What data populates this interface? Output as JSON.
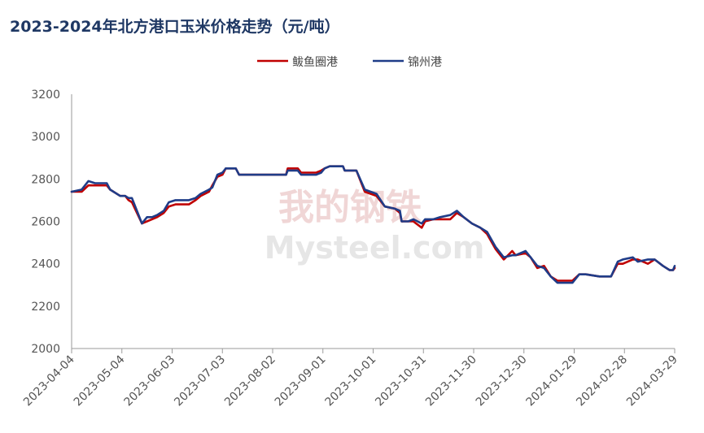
{
  "chart_data": {
    "type": "line",
    "title": "2023-2024年北方港口玉米价格走势（元/吨）",
    "xlabel": "",
    "ylabel": "",
    "ylim": [
      2000,
      3200
    ],
    "yticks": [
      2000,
      2200,
      2400,
      2600,
      2800,
      3000,
      3200
    ],
    "xlim": [
      "2023-04-04",
      "2024-03-29"
    ],
    "xticks": [
      "2023-04-04",
      "2023-05-04",
      "2023-06-03",
      "2023-07-03",
      "2023-08-02",
      "2023-09-01",
      "2023-10-01",
      "2023-10-31",
      "2023-11-30",
      "2023-12-30",
      "2024-01-29",
      "2024-02-28",
      "2024-03-29"
    ],
    "grid": false,
    "legend_position": "top-center",
    "watermark": {
      "line1": "我的钢铁",
      "line2": "Mysteel.com"
    },
    "series": [
      {
        "name": "鲅鱼圈港",
        "color": "#c00000",
        "points": [
          [
            "2023-04-04",
            2740
          ],
          [
            "2023-04-10",
            2740
          ],
          [
            "2023-04-14",
            2770
          ],
          [
            "2023-04-18",
            2770
          ],
          [
            "2023-04-25",
            2770
          ],
          [
            "2023-04-27",
            2750
          ],
          [
            "2023-05-03",
            2720
          ],
          [
            "2023-05-06",
            2720
          ],
          [
            "2023-05-08",
            2700
          ],
          [
            "2023-05-10",
            2690
          ],
          [
            "2023-05-16",
            2590
          ],
          [
            "2023-05-19",
            2600
          ],
          [
            "2023-05-22",
            2610
          ],
          [
            "2023-05-25",
            2620
          ],
          [
            "2023-05-29",
            2640
          ],
          [
            "2023-06-01",
            2670
          ],
          [
            "2023-06-05",
            2680
          ],
          [
            "2023-06-13",
            2680
          ],
          [
            "2023-06-17",
            2700
          ],
          [
            "2023-06-20",
            2720
          ],
          [
            "2023-06-25",
            2740
          ],
          [
            "2023-06-27",
            2770
          ],
          [
            "2023-06-30",
            2810
          ],
          [
            "2023-07-03",
            2820
          ],
          [
            "2023-07-05",
            2850
          ],
          [
            "2023-07-11",
            2850
          ],
          [
            "2023-07-13",
            2820
          ],
          [
            "2023-08-01",
            2820
          ],
          [
            "2023-08-10",
            2820
          ],
          [
            "2023-08-11",
            2850
          ],
          [
            "2023-08-17",
            2850
          ],
          [
            "2023-08-19",
            2830
          ],
          [
            "2023-08-28",
            2830
          ],
          [
            "2023-08-31",
            2840
          ],
          [
            "2023-09-02",
            2850
          ],
          [
            "2023-09-05",
            2860
          ],
          [
            "2023-09-13",
            2860
          ],
          [
            "2023-09-14",
            2840
          ],
          [
            "2023-09-21",
            2840
          ],
          [
            "2023-09-26",
            2740
          ],
          [
            "2023-10-03",
            2720
          ],
          [
            "2023-10-08",
            2670
          ],
          [
            "2023-10-14",
            2660
          ],
          [
            "2023-10-17",
            2640
          ],
          [
            "2023-10-18",
            2600
          ],
          [
            "2023-10-22",
            2600
          ],
          [
            "2023-10-25",
            2600
          ],
          [
            "2023-10-30",
            2570
          ],
          [
            "2023-11-01",
            2600
          ],
          [
            "2023-11-06",
            2610
          ],
          [
            "2023-11-10",
            2610
          ],
          [
            "2023-11-16",
            2610
          ],
          [
            "2023-11-20",
            2640
          ],
          [
            "2023-11-24",
            2620
          ],
          [
            "2023-11-29",
            2590
          ],
          [
            "2023-12-04",
            2570
          ],
          [
            "2023-12-08",
            2540
          ],
          [
            "2023-12-13",
            2470
          ],
          [
            "2023-12-18",
            2420
          ],
          [
            "2023-12-23",
            2460
          ],
          [
            "2023-12-25",
            2440
          ],
          [
            "2023-12-31",
            2450
          ],
          [
            "2024-01-03",
            2430
          ],
          [
            "2024-01-07",
            2380
          ],
          [
            "2024-01-11",
            2390
          ],
          [
            "2024-01-15",
            2340
          ],
          [
            "2024-01-19",
            2320
          ],
          [
            "2024-01-23",
            2320
          ],
          [
            "2024-01-28",
            2320
          ],
          [
            "2024-02-01",
            2350
          ],
          [
            "2024-02-05",
            2350
          ],
          [
            "2024-02-13",
            2340
          ],
          [
            "2024-02-20",
            2340
          ],
          [
            "2024-02-24",
            2400
          ],
          [
            "2024-02-27",
            2400
          ],
          [
            "2024-03-04",
            2420
          ],
          [
            "2024-03-07",
            2420
          ],
          [
            "2024-03-13",
            2400
          ],
          [
            "2024-03-17",
            2420
          ],
          [
            "2024-03-22",
            2390
          ],
          [
            "2024-03-26",
            2370
          ],
          [
            "2024-03-28",
            2370
          ],
          [
            "2024-03-29",
            2380
          ]
        ]
      },
      {
        "name": "锦州港",
        "color": "#1f3c88",
        "points": [
          [
            "2023-04-04",
            2740
          ],
          [
            "2023-04-10",
            2750
          ],
          [
            "2023-04-14",
            2790
          ],
          [
            "2023-04-18",
            2780
          ],
          [
            "2023-04-25",
            2780
          ],
          [
            "2023-04-27",
            2750
          ],
          [
            "2023-05-03",
            2720
          ],
          [
            "2023-05-06",
            2720
          ],
          [
            "2023-05-08",
            2710
          ],
          [
            "2023-05-10",
            2710
          ],
          [
            "2023-05-16",
            2590
          ],
          [
            "2023-05-19",
            2620
          ],
          [
            "2023-05-22",
            2620
          ],
          [
            "2023-05-25",
            2630
          ],
          [
            "2023-05-29",
            2650
          ],
          [
            "2023-06-01",
            2690
          ],
          [
            "2023-06-05",
            2700
          ],
          [
            "2023-06-13",
            2700
          ],
          [
            "2023-06-17",
            2710
          ],
          [
            "2023-06-20",
            2730
          ],
          [
            "2023-06-25",
            2750
          ],
          [
            "2023-06-27",
            2760
          ],
          [
            "2023-06-30",
            2820
          ],
          [
            "2023-07-03",
            2830
          ],
          [
            "2023-07-05",
            2850
          ],
          [
            "2023-07-11",
            2850
          ],
          [
            "2023-07-13",
            2820
          ],
          [
            "2023-08-01",
            2820
          ],
          [
            "2023-08-10",
            2820
          ],
          [
            "2023-08-11",
            2840
          ],
          [
            "2023-08-17",
            2840
          ],
          [
            "2023-08-19",
            2820
          ],
          [
            "2023-08-28",
            2820
          ],
          [
            "2023-08-31",
            2830
          ],
          [
            "2023-09-02",
            2850
          ],
          [
            "2023-09-05",
            2860
          ],
          [
            "2023-09-13",
            2860
          ],
          [
            "2023-09-14",
            2840
          ],
          [
            "2023-09-21",
            2840
          ],
          [
            "2023-09-26",
            2750
          ],
          [
            "2023-10-03",
            2730
          ],
          [
            "2023-10-08",
            2670
          ],
          [
            "2023-10-14",
            2660
          ],
          [
            "2023-10-17",
            2650
          ],
          [
            "2023-10-18",
            2600
          ],
          [
            "2023-10-22",
            2600
          ],
          [
            "2023-10-25",
            2610
          ],
          [
            "2023-10-30",
            2590
          ],
          [
            "2023-11-01",
            2610
          ],
          [
            "2023-11-06",
            2610
          ],
          [
            "2023-11-10",
            2620
          ],
          [
            "2023-11-16",
            2630
          ],
          [
            "2023-11-20",
            2650
          ],
          [
            "2023-11-24",
            2620
          ],
          [
            "2023-11-29",
            2590
          ],
          [
            "2023-12-04",
            2570
          ],
          [
            "2023-12-08",
            2550
          ],
          [
            "2023-12-13",
            2480
          ],
          [
            "2023-12-18",
            2430
          ],
          [
            "2023-12-23",
            2440
          ],
          [
            "2023-12-25",
            2440
          ],
          [
            "2023-12-31",
            2460
          ],
          [
            "2024-01-03",
            2430
          ],
          [
            "2024-01-07",
            2390
          ],
          [
            "2024-01-11",
            2380
          ],
          [
            "2024-01-15",
            2340
          ],
          [
            "2024-01-19",
            2310
          ],
          [
            "2024-01-23",
            2310
          ],
          [
            "2024-01-28",
            2310
          ],
          [
            "2024-02-01",
            2350
          ],
          [
            "2024-02-05",
            2350
          ],
          [
            "2024-02-13",
            2340
          ],
          [
            "2024-02-20",
            2340
          ],
          [
            "2024-02-24",
            2410
          ],
          [
            "2024-02-27",
            2420
          ],
          [
            "2024-03-04",
            2430
          ],
          [
            "2024-03-07",
            2410
          ],
          [
            "2024-03-13",
            2420
          ],
          [
            "2024-03-17",
            2420
          ],
          [
            "2024-03-22",
            2390
          ],
          [
            "2024-03-26",
            2370
          ],
          [
            "2024-03-28",
            2370
          ],
          [
            "2024-03-29",
            2390
          ]
        ]
      }
    ]
  }
}
